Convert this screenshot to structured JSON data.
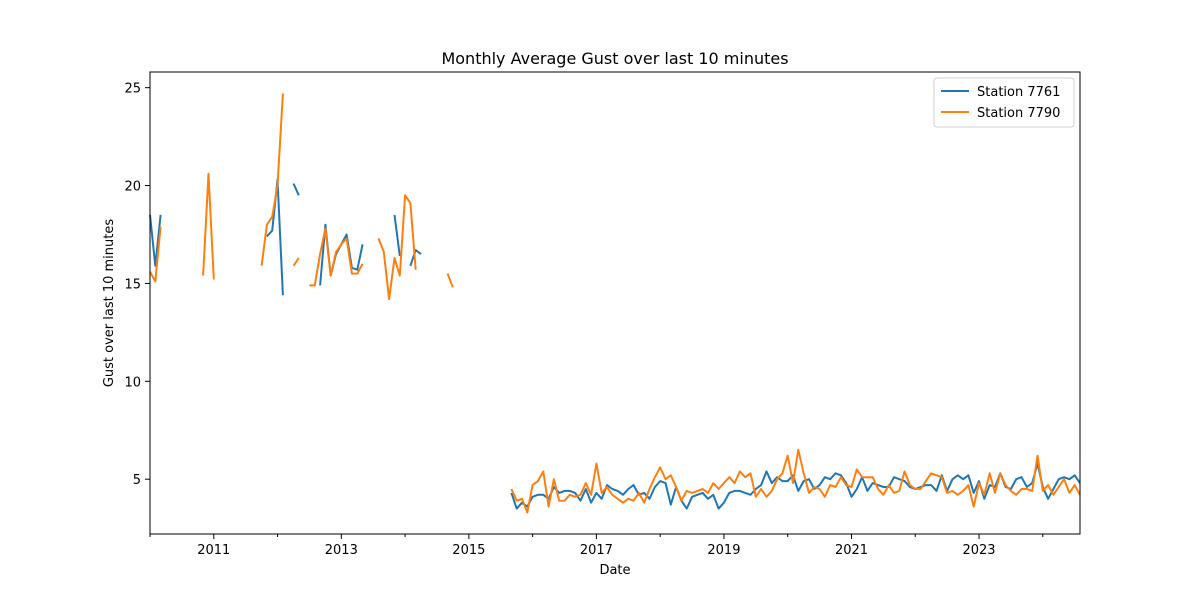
{
  "chart_data": {
    "type": "line",
    "title": "Monthly Average Gust over last 10 minutes",
    "xlabel": "Date",
    "ylabel": "Gust over last 10 minutes",
    "xlim": [
      "2010-01",
      "2024-08"
    ],
    "ylim": [
      2.2,
      25.8
    ],
    "x_ticks": [
      "2011",
      "2013",
      "2015",
      "2017",
      "2019",
      "2021",
      "2023"
    ],
    "y_ticks": [
      5,
      10,
      15,
      20,
      25
    ],
    "legend_position": "top-right",
    "grid": false,
    "series": [
      {
        "name": "Station 7761",
        "color": "#1f77b4",
        "points": [
          [
            "2010-01",
            18.5
          ],
          [
            "2010-02",
            15.9
          ],
          [
            "2010-03",
            18.5
          ],
          [
            "2010-04",
            null
          ],
          [
            "2011-11",
            17.4
          ],
          [
            "2011-12",
            17.7
          ],
          [
            "2012-01",
            20.3
          ],
          [
            "2012-02",
            14.4
          ],
          [
            "2012-03",
            null
          ],
          [
            "2012-04",
            20.1
          ],
          [
            "2012-05",
            19.5
          ],
          [
            "2012-06",
            null
          ],
          [
            "2012-09",
            14.9
          ],
          [
            "2012-10",
            18.0
          ],
          [
            "2012-11",
            15.4
          ],
          [
            "2012-12",
            16.5
          ],
          [
            "2013-01",
            17.0
          ],
          [
            "2013-02",
            17.5
          ],
          [
            "2013-03",
            15.8
          ],
          [
            "2013-04",
            15.7
          ],
          [
            "2013-05",
            17.0
          ],
          [
            "2013-06",
            null
          ],
          [
            "2013-11",
            18.5
          ],
          [
            "2013-12",
            16.4
          ],
          [
            "2014-01",
            null
          ],
          [
            "2014-02",
            15.9
          ],
          [
            "2014-03",
            16.7
          ],
          [
            "2014-04",
            16.5
          ],
          [
            "2014-05",
            null
          ],
          [
            "2015-09",
            4.3
          ],
          [
            "2015-10",
            3.5
          ],
          [
            "2015-11",
            3.8
          ],
          [
            "2015-12",
            3.6
          ],
          [
            "2016-01",
            4.1
          ],
          [
            "2016-02",
            4.2
          ],
          [
            "2016-03",
            4.2
          ],
          [
            "2016-04",
            4.0
          ],
          [
            "2016-05",
            4.6
          ],
          [
            "2016-06",
            4.3
          ],
          [
            "2016-07",
            4.4
          ],
          [
            "2016-08",
            4.4
          ],
          [
            "2016-09",
            4.3
          ],
          [
            "2016-10",
            3.9
          ],
          [
            "2016-11",
            4.5
          ],
          [
            "2016-12",
            3.8
          ],
          [
            "2017-01",
            4.3
          ],
          [
            "2017-02",
            4.0
          ],
          [
            "2017-03",
            4.7
          ],
          [
            "2017-04",
            4.5
          ],
          [
            "2017-05",
            4.4
          ],
          [
            "2017-06",
            4.2
          ],
          [
            "2017-07",
            4.5
          ],
          [
            "2017-08",
            4.7
          ],
          [
            "2017-09",
            4.2
          ],
          [
            "2017-10",
            4.3
          ],
          [
            "2017-11",
            4.0
          ],
          [
            "2017-12",
            4.6
          ],
          [
            "2018-01",
            4.9
          ],
          [
            "2018-02",
            4.8
          ],
          [
            "2018-03",
            3.7
          ],
          [
            "2018-04",
            4.6
          ],
          [
            "2018-05",
            3.9
          ],
          [
            "2018-06",
            3.5
          ],
          [
            "2018-07",
            4.1
          ],
          [
            "2018-08",
            4.2
          ],
          [
            "2018-09",
            4.3
          ],
          [
            "2018-10",
            4.0
          ],
          [
            "2018-11",
            4.2
          ],
          [
            "2018-12",
            3.5
          ],
          [
            "2019-01",
            3.8
          ],
          [
            "2019-02",
            4.3
          ],
          [
            "2019-03",
            4.4
          ],
          [
            "2019-04",
            4.4
          ],
          [
            "2019-05",
            4.3
          ],
          [
            "2019-06",
            4.2
          ],
          [
            "2019-07",
            4.5
          ],
          [
            "2019-08",
            4.7
          ],
          [
            "2019-09",
            5.4
          ],
          [
            "2019-10",
            4.8
          ],
          [
            "2019-11",
            5.1
          ],
          [
            "2019-12",
            4.9
          ],
          [
            "2020-01",
            4.9
          ],
          [
            "2020-02",
            5.2
          ],
          [
            "2020-03",
            4.4
          ],
          [
            "2020-04",
            4.9
          ],
          [
            "2020-05",
            5.0
          ],
          [
            "2020-06",
            4.5
          ],
          [
            "2020-07",
            4.7
          ],
          [
            "2020-08",
            5.1
          ],
          [
            "2020-09",
            5.0
          ],
          [
            "2020-10",
            5.3
          ],
          [
            "2020-11",
            5.2
          ],
          [
            "2020-12",
            4.8
          ],
          [
            "2021-01",
            4.1
          ],
          [
            "2021-02",
            4.5
          ],
          [
            "2021-03",
            5.1
          ],
          [
            "2021-04",
            4.4
          ],
          [
            "2021-05",
            4.8
          ],
          [
            "2021-06",
            4.7
          ],
          [
            "2021-07",
            4.6
          ],
          [
            "2021-08",
            4.6
          ],
          [
            "2021-09",
            5.1
          ],
          [
            "2021-10",
            5.0
          ],
          [
            "2021-11",
            4.9
          ],
          [
            "2021-12",
            4.6
          ],
          [
            "2022-01",
            4.5
          ],
          [
            "2022-02",
            4.6
          ],
          [
            "2022-03",
            4.7
          ],
          [
            "2022-04",
            4.7
          ],
          [
            "2022-05",
            4.4
          ],
          [
            "2022-06",
            5.2
          ],
          [
            "2022-07",
            4.4
          ],
          [
            "2022-08",
            5.0
          ],
          [
            "2022-09",
            5.2
          ],
          [
            "2022-10",
            5.0
          ],
          [
            "2022-11",
            5.2
          ],
          [
            "2022-12",
            4.3
          ],
          [
            "2023-01",
            4.9
          ],
          [
            "2023-02",
            4.0
          ],
          [
            "2023-03",
            4.7
          ],
          [
            "2023-04",
            4.6
          ],
          [
            "2023-05",
            5.3
          ],
          [
            "2023-06",
            4.6
          ],
          [
            "2023-07",
            4.5
          ],
          [
            "2023-08",
            5.0
          ],
          [
            "2023-09",
            5.1
          ],
          [
            "2023-10",
            4.6
          ],
          [
            "2023-11",
            4.8
          ],
          [
            "2023-12",
            5.8
          ],
          [
            "2024-01",
            4.6
          ],
          [
            "2024-02",
            4.0
          ],
          [
            "2024-03",
            4.5
          ],
          [
            "2024-04",
            5.0
          ],
          [
            "2024-05",
            5.1
          ],
          [
            "2024-06",
            5.0
          ],
          [
            "2024-07",
            5.2
          ],
          [
            "2024-08",
            4.8
          ]
        ]
      },
      {
        "name": "Station 7790",
        "color": "#ff7f0e",
        "points": [
          [
            "2010-01",
            15.6
          ],
          [
            "2010-02",
            15.1
          ],
          [
            "2010-03",
            17.9
          ],
          [
            "2010-04",
            null
          ],
          [
            "2010-11",
            15.4
          ],
          [
            "2010-12",
            20.6
          ],
          [
            "2011-01",
            15.2
          ],
          [
            "2011-02",
            null
          ],
          [
            "2011-10",
            15.9
          ],
          [
            "2011-11",
            18.0
          ],
          [
            "2011-12",
            18.4
          ],
          [
            "2012-01",
            20.0
          ],
          [
            "2012-02",
            24.7
          ],
          [
            "2012-03",
            null
          ],
          [
            "2012-04",
            15.9
          ],
          [
            "2012-05",
            16.3
          ],
          [
            "2012-06",
            null
          ],
          [
            "2012-07",
            14.9
          ],
          [
            "2012-08",
            14.9
          ],
          [
            "2012-09",
            16.5
          ],
          [
            "2012-10",
            17.8
          ],
          [
            "2012-11",
            15.4
          ],
          [
            "2012-12",
            16.6
          ],
          [
            "2013-01",
            17.0
          ],
          [
            "2013-02",
            17.3
          ],
          [
            "2013-03",
            15.5
          ],
          [
            "2013-04",
            15.5
          ],
          [
            "2013-05",
            16.0
          ],
          [
            "2013-06",
            null
          ],
          [
            "2013-08",
            17.3
          ],
          [
            "2013-09",
            16.6
          ],
          [
            "2013-10",
            14.2
          ],
          [
            "2013-11",
            16.3
          ],
          [
            "2013-12",
            15.4
          ],
          [
            "2014-01",
            19.5
          ],
          [
            "2014-02",
            19.1
          ],
          [
            "2014-03",
            15.7
          ],
          [
            "2014-04",
            null
          ],
          [
            "2014-09",
            15.5
          ],
          [
            "2014-10",
            14.8
          ],
          [
            "2014-11",
            null
          ],
          [
            "2015-09",
            4.5
          ],
          [
            "2015-10",
            3.9
          ],
          [
            "2015-11",
            4.0
          ],
          [
            "2015-12",
            3.3
          ],
          [
            "2016-01",
            4.7
          ],
          [
            "2016-02",
            4.9
          ],
          [
            "2016-03",
            5.4
          ],
          [
            "2016-04",
            3.6
          ],
          [
            "2016-05",
            5.0
          ],
          [
            "2016-06",
            3.9
          ],
          [
            "2016-07",
            3.9
          ],
          [
            "2016-08",
            4.2
          ],
          [
            "2016-09",
            4.1
          ],
          [
            "2016-10",
            4.2
          ],
          [
            "2016-11",
            4.8
          ],
          [
            "2016-12",
            4.2
          ],
          [
            "2017-01",
            5.8
          ],
          [
            "2017-02",
            4.3
          ],
          [
            "2017-03",
            4.6
          ],
          [
            "2017-04",
            4.2
          ],
          [
            "2017-05",
            4.0
          ],
          [
            "2017-06",
            3.8
          ],
          [
            "2017-07",
            4.0
          ],
          [
            "2017-08",
            3.9
          ],
          [
            "2017-09",
            4.3
          ],
          [
            "2017-10",
            3.8
          ],
          [
            "2017-11",
            4.5
          ],
          [
            "2017-12",
            5.1
          ],
          [
            "2018-01",
            5.6
          ],
          [
            "2018-02",
            5.0
          ],
          [
            "2018-03",
            5.2
          ],
          [
            "2018-04",
            4.6
          ],
          [
            "2018-05",
            3.9
          ],
          [
            "2018-06",
            4.4
          ],
          [
            "2018-07",
            4.3
          ],
          [
            "2018-08",
            4.4
          ],
          [
            "2018-09",
            4.5
          ],
          [
            "2018-10",
            4.3
          ],
          [
            "2018-11",
            4.8
          ],
          [
            "2018-12",
            4.5
          ],
          [
            "2019-01",
            4.8
          ],
          [
            "2019-02",
            5.1
          ],
          [
            "2019-03",
            4.8
          ],
          [
            "2019-04",
            5.4
          ],
          [
            "2019-05",
            5.1
          ],
          [
            "2019-06",
            5.3
          ],
          [
            "2019-07",
            4.1
          ],
          [
            "2019-08",
            4.5
          ],
          [
            "2019-09",
            4.1
          ],
          [
            "2019-10",
            4.4
          ],
          [
            "2019-11",
            5.0
          ],
          [
            "2019-12",
            5.3
          ],
          [
            "2020-01",
            6.2
          ],
          [
            "2020-02",
            4.8
          ],
          [
            "2020-03",
            6.5
          ],
          [
            "2020-04",
            5.3
          ],
          [
            "2020-05",
            4.3
          ],
          [
            "2020-06",
            4.6
          ],
          [
            "2020-07",
            4.5
          ],
          [
            "2020-08",
            4.1
          ],
          [
            "2020-09",
            4.7
          ],
          [
            "2020-10",
            4.6
          ],
          [
            "2020-11",
            5.1
          ],
          [
            "2020-12",
            4.7
          ],
          [
            "2021-01",
            4.6
          ],
          [
            "2021-02",
            5.5
          ],
          [
            "2021-03",
            5.1
          ],
          [
            "2021-04",
            5.1
          ],
          [
            "2021-05",
            5.1
          ],
          [
            "2021-06",
            4.5
          ],
          [
            "2021-07",
            4.2
          ],
          [
            "2021-08",
            4.7
          ],
          [
            "2021-09",
            4.3
          ],
          [
            "2021-10",
            4.4
          ],
          [
            "2021-11",
            5.4
          ],
          [
            "2021-12",
            4.7
          ],
          [
            "2022-01",
            4.5
          ],
          [
            "2022-02",
            4.5
          ],
          [
            "2022-03",
            4.9
          ],
          [
            "2022-04",
            5.3
          ],
          [
            "2022-05",
            5.2
          ],
          [
            "2022-06",
            5.1
          ],
          [
            "2022-07",
            4.3
          ],
          [
            "2022-08",
            4.4
          ],
          [
            "2022-09",
            4.2
          ],
          [
            "2022-10",
            4.4
          ],
          [
            "2022-11",
            4.7
          ],
          [
            "2022-12",
            3.6
          ],
          [
            "2023-01",
            4.8
          ],
          [
            "2023-02",
            4.2
          ],
          [
            "2023-03",
            5.3
          ],
          [
            "2023-04",
            4.3
          ],
          [
            "2023-05",
            5.3
          ],
          [
            "2023-06",
            4.7
          ],
          [
            "2023-07",
            4.4
          ],
          [
            "2023-08",
            4.2
          ],
          [
            "2023-09",
            4.5
          ],
          [
            "2023-10",
            4.5
          ],
          [
            "2023-11",
            4.4
          ],
          [
            "2023-12",
            6.2
          ],
          [
            "2024-01",
            4.4
          ],
          [
            "2024-02",
            4.7
          ],
          [
            "2024-03",
            4.2
          ],
          [
            "2024-04",
            4.6
          ],
          [
            "2024-05",
            5.0
          ],
          [
            "2024-06",
            4.3
          ],
          [
            "2024-07",
            4.7
          ],
          [
            "2024-08",
            4.2
          ]
        ]
      }
    ]
  }
}
